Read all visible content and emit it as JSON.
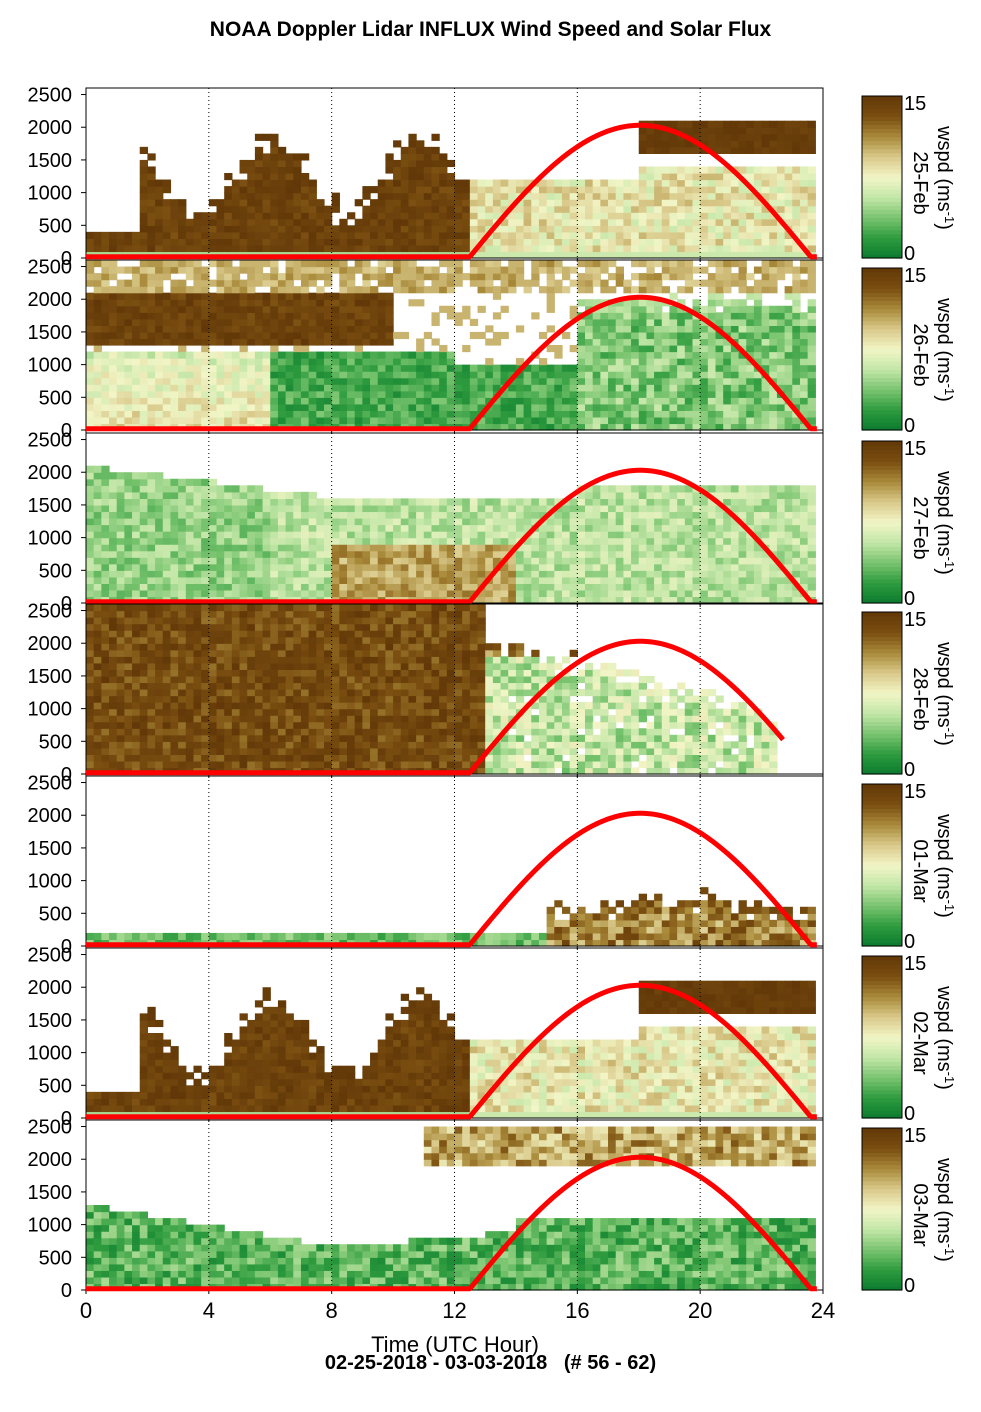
{
  "title": "NOAA Doppler Lidar INFLUX Wind Speed and Solar Flux",
  "footer": "02-25-2018 - 03-03-2018   (# 56 - 62)",
  "chart_data": {
    "type": "heatmap",
    "xlabel": "Time (UTC Hour)",
    "xlim": [
      0,
      24
    ],
    "x_ticks": [
      0,
      4,
      8,
      12,
      16,
      20,
      24
    ],
    "x_tick_labels": [
      "0",
      "4",
      "8",
      "12",
      "16",
      "20",
      "24"
    ],
    "ylim": [
      0,
      2600
    ],
    "y_ticks": [
      0,
      500,
      1000,
      1500,
      2000,
      2500
    ],
    "y_tick_labels": [
      "0",
      "500",
      "1000",
      "1500",
      "2000",
      "2500"
    ],
    "grid": "vertical dotted at hours 4, 8, 12, 16, 20, 24",
    "colorbar": {
      "label": "wspd (ms",
      "label_sup": "-1",
      "label_close": ")",
      "range": [
        0,
        15
      ],
      "tick_labels": [
        "0",
        "15"
      ],
      "colors": [
        "#0a7a2e",
        "#2e9b3e",
        "#79c46f",
        "#c2e6a7",
        "#f2f5c6",
        "#d9c98a",
        "#a98a3a",
        "#7a4e10",
        "#623808"
      ]
    },
    "solar_curve": {
      "color": "#ff0000",
      "sunrise_hour": 12.5,
      "peak_hour": 18.0,
      "sunset_hour": 23.6,
      "peak_height": 2030
    },
    "panels": [
      {
        "date": "25-Feb",
        "profile": "strong_night",
        "sun_end": 23.6
      },
      {
        "date": "26-Feb",
        "profile": "upper_strong_lower_weak",
        "sun_end": 23.6
      },
      {
        "date": "27-Feb",
        "profile": "moderate",
        "sun_end": 23.6
      },
      {
        "date": "28-Feb",
        "profile": "very_strong",
        "sun_end": 22.7
      },
      {
        "date": "01-Mar",
        "profile": "shallow",
        "sun_end": 23.6
      },
      {
        "date": "02-Mar",
        "profile": "strong_night",
        "sun_end": 23.6
      },
      {
        "date": "03-Mar",
        "profile": "weak_with_aloft",
        "sun_end": 23.6
      }
    ]
  }
}
